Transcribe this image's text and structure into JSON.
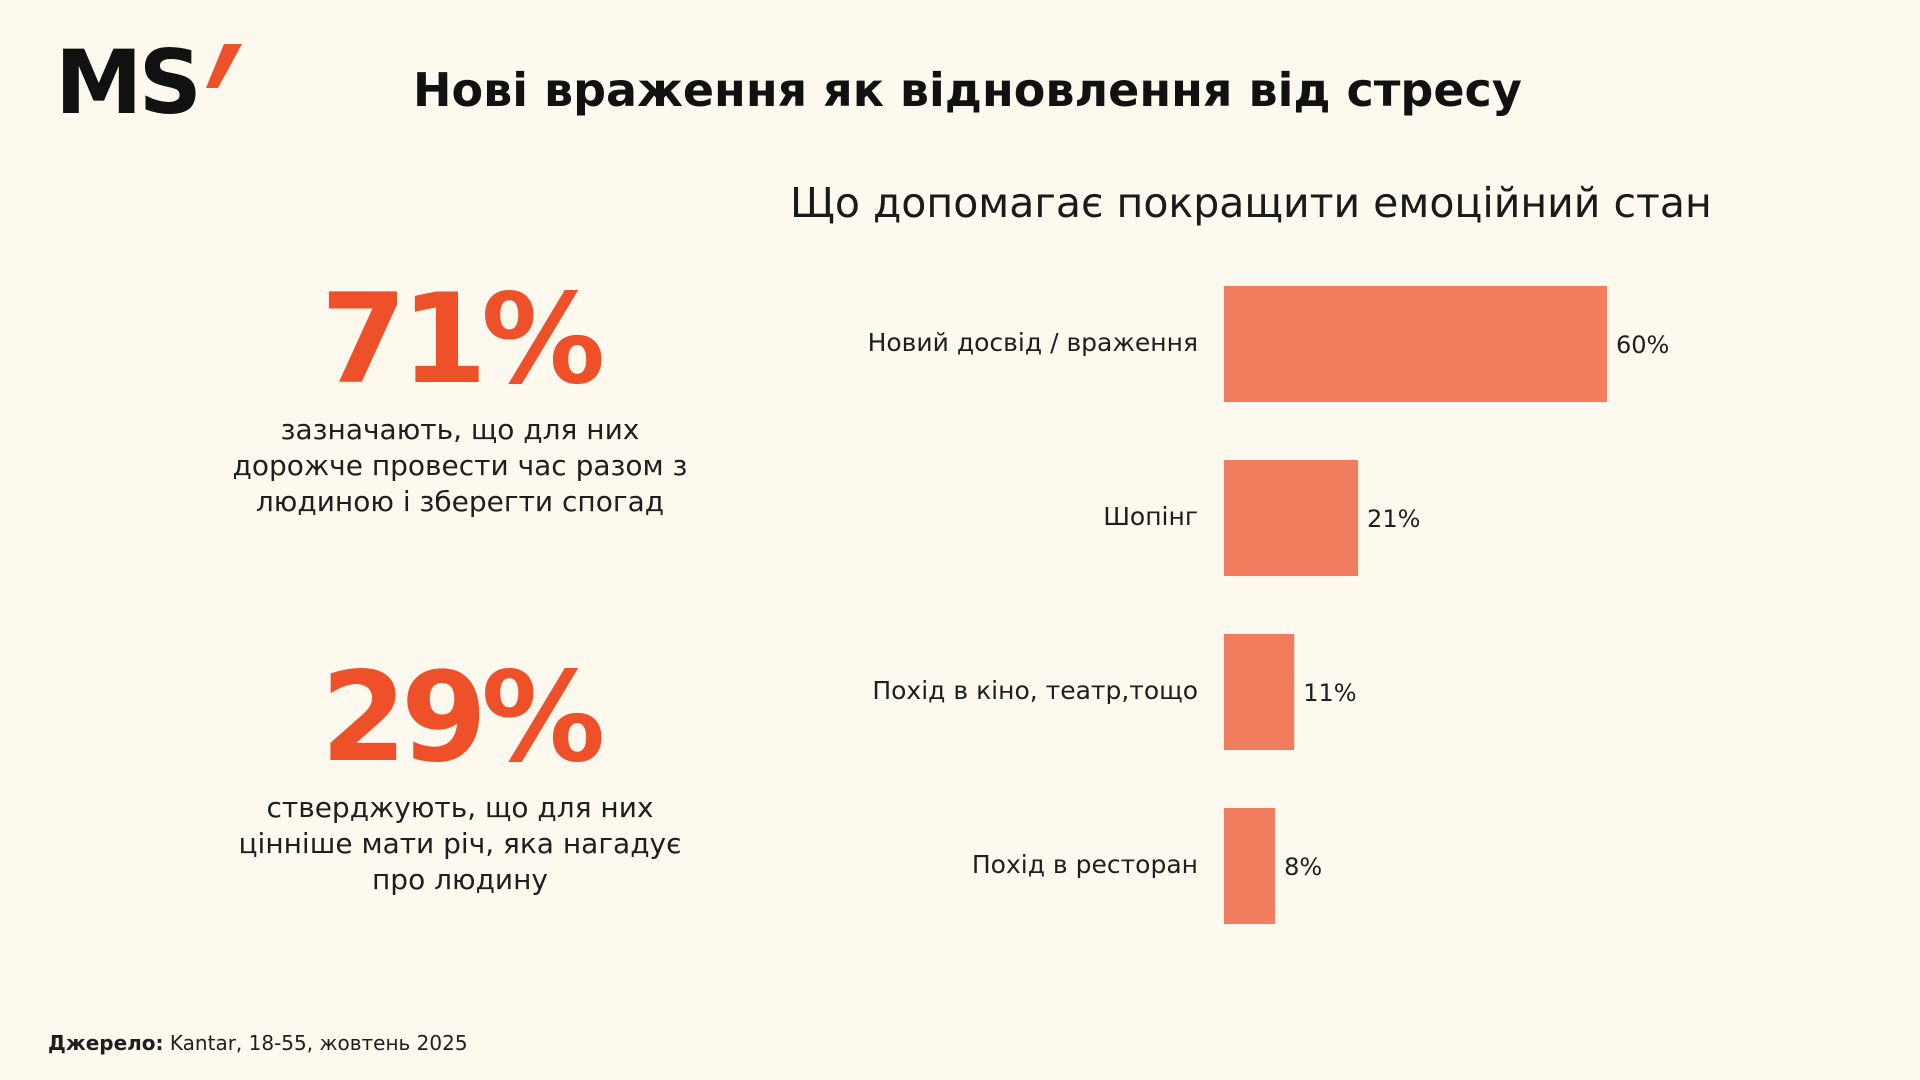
{
  "brand": {
    "logo_text": "MS",
    "logo_accent": "’",
    "accent_color": "#EE5029",
    "bar_color": "#F27C5E",
    "background": "#FDF9EE"
  },
  "header": {
    "title": "Нові враження як відновлення від стресу"
  },
  "stats": [
    {
      "value": "71%",
      "lines": [
        "зазначають, що для них",
        "дорожче провести час разом з",
        "людиною і зберегти спогад"
      ]
    },
    {
      "value": "29%",
      "lines": [
        "стверджують, що для них",
        "цінніше мати річ, яка нагадує",
        "про людину"
      ]
    }
  ],
  "chart_data": {
    "type": "bar",
    "orientation": "horizontal",
    "title": "Що допомагає покращити емоційний стан",
    "categories": [
      "Новий досвід / враження",
      "Шопінг",
      "Похід в кіно, театр,тощо",
      "Похід в ресторан"
    ],
    "values": [
      60,
      21,
      11,
      8
    ],
    "value_labels": [
      "60%",
      "21%",
      "11%",
      "8%"
    ],
    "unit": "%",
    "xlim": [
      0,
      60
    ],
    "grid": false,
    "legend": "none"
  },
  "footer": {
    "source_label": "Джерело:",
    "source_text": " Kantar, 18-55, жовтень 2025"
  }
}
